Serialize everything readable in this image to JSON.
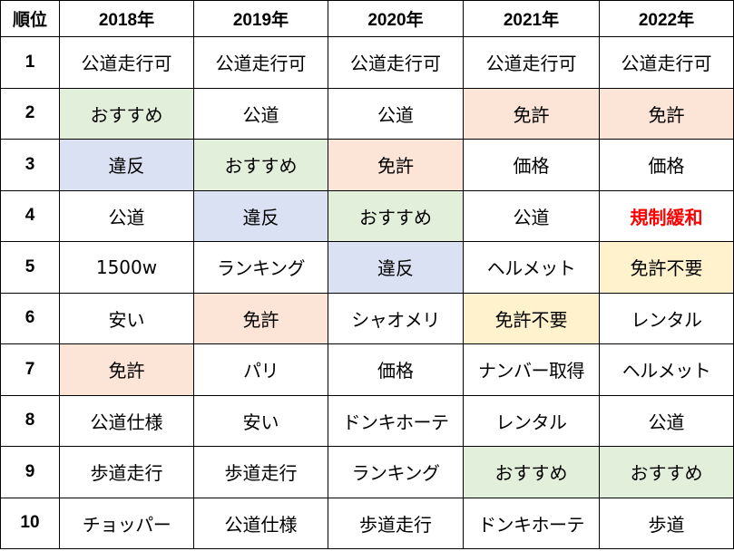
{
  "table": {
    "headers": [
      "順位",
      "2018年",
      "2019年",
      "2020年",
      "2021年",
      "2022年"
    ],
    "rows": [
      {
        "rank": "1",
        "cells": [
          "公道走行可",
          "公道走行可",
          "公道走行可",
          "公道走行可",
          "公道走行可"
        ]
      },
      {
        "rank": "2",
        "cells": [
          "おすすめ",
          "公道",
          "公道",
          "免許",
          "免許"
        ]
      },
      {
        "rank": "3",
        "cells": [
          "違反",
          "おすすめ",
          "免許",
          "価格",
          "価格"
        ]
      },
      {
        "rank": "4",
        "cells": [
          "公道",
          "違反",
          "おすすめ",
          "公道",
          "規制緩和"
        ]
      },
      {
        "rank": "5",
        "cells": [
          "1500w",
          "ランキング",
          "違反",
          "ヘルメット",
          "免許不要"
        ]
      },
      {
        "rank": "6",
        "cells": [
          "安い",
          "免許",
          "シャオメリ",
          "免許不要",
          "レンタル"
        ]
      },
      {
        "rank": "7",
        "cells": [
          "免許",
          "パリ",
          "価格",
          "ナンバー取得",
          "ヘルメット"
        ]
      },
      {
        "rank": "8",
        "cells": [
          "公道仕様",
          "安い",
          "ドンキホーテ",
          "レンタル",
          "公道"
        ]
      },
      {
        "rank": "9",
        "cells": [
          "歩道走行",
          "歩道走行",
          "ランキング",
          "おすすめ",
          "おすすめ"
        ]
      },
      {
        "rank": "10",
        "cells": [
          "チョッパー",
          "公道仕様",
          "歩道走行",
          "ドンキホーテ",
          "歩道"
        ]
      }
    ]
  },
  "colors": {
    "green": "#e2efda",
    "blue": "#d9e1f2",
    "orange": "#fce4d6",
    "yellow": "#fff2cc",
    "red_text": "#ff0000"
  }
}
